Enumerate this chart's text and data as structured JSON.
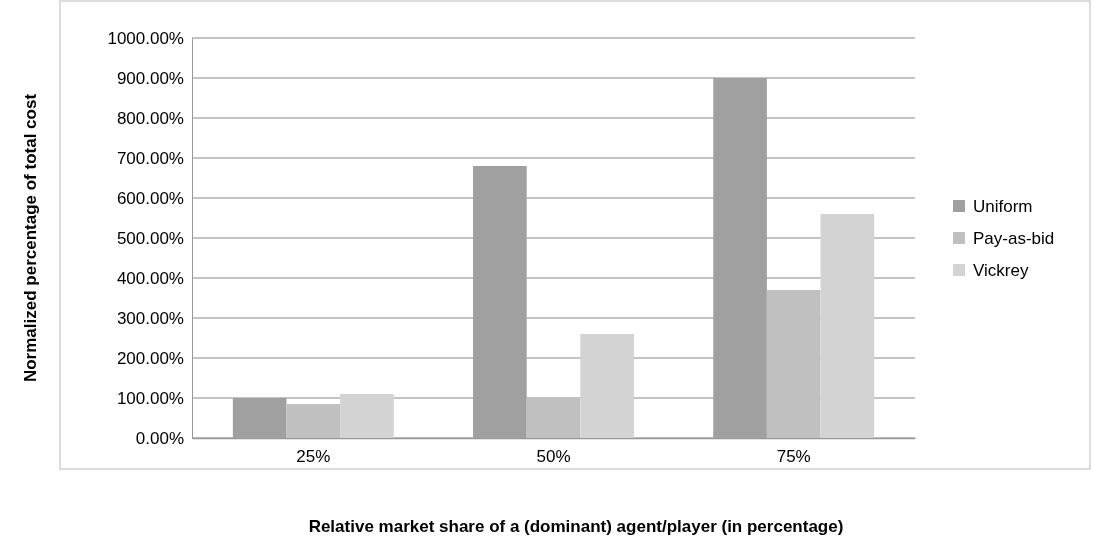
{
  "chart_data": {
    "type": "bar",
    "xlabel": "Relative market share of a (dominant) agent/player (in percentage)",
    "ylabel": "Normalized percentage of total cost",
    "categories": [
      "25%",
      "50%",
      "75%"
    ],
    "series": [
      {
        "name": "Uniform",
        "color": "#a0a0a0",
        "values": [
          100,
          680,
          900
        ]
      },
      {
        "name": "Pay-as-bid",
        "color": "#c0c0c0",
        "values": [
          85,
          100,
          370
        ]
      },
      {
        "name": "Vickrey",
        "color": "#d3d3d3",
        "values": [
          110,
          260,
          560
        ]
      }
    ],
    "ylim": [
      0,
      1000
    ],
    "yticks": [
      {
        "value": 0,
        "label": "0.00%"
      },
      {
        "value": 100,
        "label": "100.00%"
      },
      {
        "value": 200,
        "label": "200.00%"
      },
      {
        "value": 300,
        "label": "300.00%"
      },
      {
        "value": 400,
        "label": "400.00%"
      },
      {
        "value": 500,
        "label": "500.00%"
      },
      {
        "value": 600,
        "label": "600.00%"
      },
      {
        "value": 700,
        "label": "700.00%"
      },
      {
        "value": 800,
        "label": "800.00%"
      },
      {
        "value": 900,
        "label": "900.00%"
      },
      {
        "value": 1000,
        "label": "1000.00%"
      }
    ],
    "grid": "y",
    "legend": "right"
  }
}
